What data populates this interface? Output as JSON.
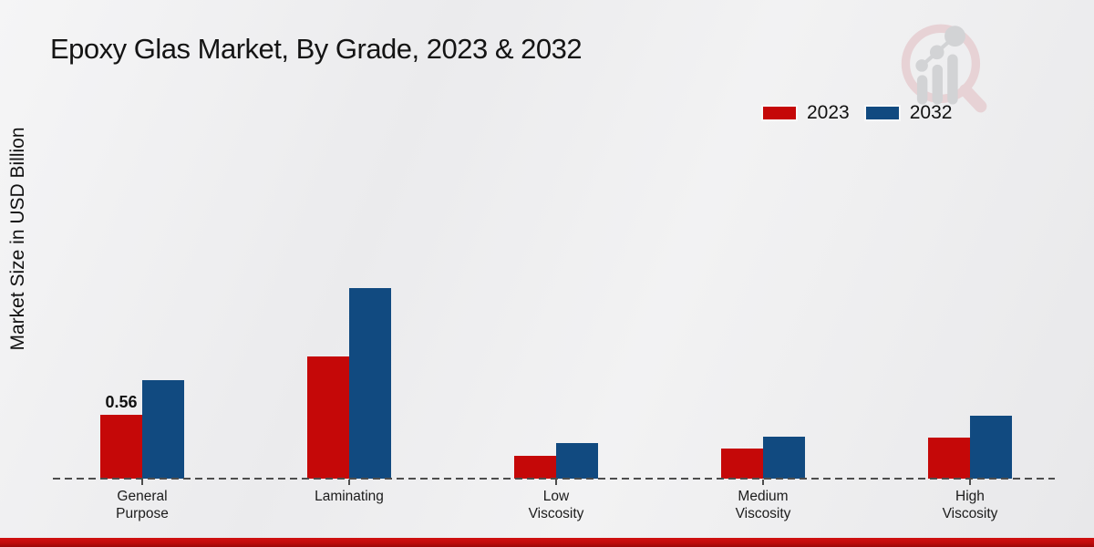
{
  "title": "Epoxy Glas Market, By Grade, 2023 & 2032",
  "y_axis_label": "Market Size in USD Billion",
  "legend": {
    "items": [
      {
        "label": "2023",
        "color": "#c50808"
      },
      {
        "label": "2032",
        "color": "#114a80"
      }
    ]
  },
  "colors": {
    "series_2023": "#c50808",
    "series_2032": "#114a80",
    "baseline": "#4d4d4d",
    "bottom_strip": "#c00c0c"
  },
  "chart_data": {
    "type": "bar",
    "title": "Epoxy Glas Market, By Grade, 2023 & 2032",
    "ylabel": "Market Size in USD Billion",
    "xlabel": "",
    "categories": [
      "General Purpose",
      "Laminating",
      "Low Viscosity",
      "Medium Viscosity",
      "High Viscosity"
    ],
    "series": [
      {
        "name": "2023",
        "color": "#c50808",
        "values": [
          0.56,
          1.07,
          0.2,
          0.26,
          0.36
        ]
      },
      {
        "name": "2032",
        "color": "#114a80",
        "values": [
          0.86,
          1.67,
          0.31,
          0.37,
          0.55
        ]
      }
    ],
    "data_labels": [
      {
        "series": "2023",
        "category": "General Purpose",
        "text": "0.56"
      }
    ],
    "ylim": [
      0,
      1.8
    ],
    "grid": false,
    "axis_style": "dashed-baseline-only",
    "legend_position": "top-right"
  }
}
